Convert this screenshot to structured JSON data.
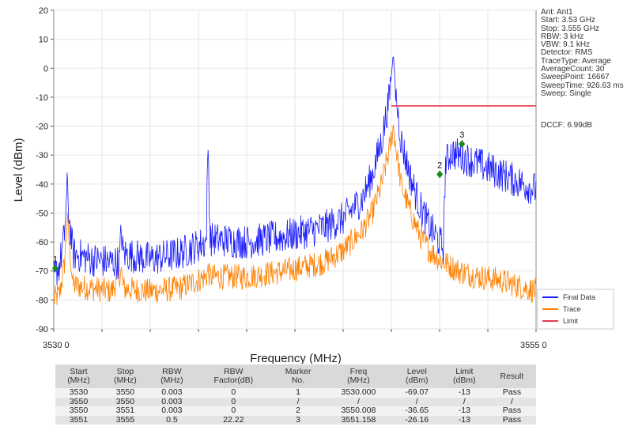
{
  "chart_data": {
    "type": "line",
    "xlabel": "Frequency (MHz)",
    "ylabel": "Level (dBm)",
    "xlim": [
      3530,
      3555
    ],
    "ylim": [
      -90,
      20
    ],
    "x_tick_labels": [
      "3530 0",
      "3555 0"
    ],
    "y_ticks": [
      20,
      10,
      0,
      -10,
      -20,
      -30,
      -40,
      -50,
      -60,
      -70,
      -80,
      -90
    ],
    "grid": true,
    "legend_position": "bottom-right",
    "series": [
      {
        "name": "Final Data",
        "color": "#1a1aff",
        "points": [
          [
            3530,
            -72
          ],
          [
            3530.3,
            -68
          ],
          [
            3530.55,
            -58
          ],
          [
            3530.7,
            -41
          ],
          [
            3530.8,
            -52
          ],
          [
            3531,
            -64
          ],
          [
            3532,
            -66
          ],
          [
            3533,
            -67
          ],
          [
            3533.4,
            -67
          ],
          [
            3533.5,
            -56
          ],
          [
            3533.6,
            -64
          ],
          [
            3535,
            -66
          ],
          [
            3536.5,
            -64
          ],
          [
            3537.9,
            -60
          ],
          [
            3538,
            -26
          ],
          [
            3538.1,
            -59
          ],
          [
            3540,
            -60
          ],
          [
            3542,
            -58
          ],
          [
            3544,
            -55
          ],
          [
            3545,
            -52
          ],
          [
            3546,
            -45
          ],
          [
            3546.5,
            -37
          ],
          [
            3547,
            -25
          ],
          [
            3547.4,
            -10
          ],
          [
            3547.6,
            5
          ],
          [
            3547.75,
            -10
          ],
          [
            3548,
            -25
          ],
          [
            3548.5,
            -38
          ],
          [
            3549,
            -48
          ],
          [
            3549.5,
            -55
          ],
          [
            3550,
            -60
          ],
          [
            3550.2,
            -62
          ],
          [
            3550.3,
            -33
          ],
          [
            3550.6,
            -29
          ],
          [
            3551,
            -30
          ],
          [
            3552,
            -33
          ],
          [
            3553,
            -36
          ],
          [
            3554,
            -39
          ],
          [
            3555,
            -42
          ]
        ]
      },
      {
        "name": "Trace",
        "color": "#ff8000",
        "points": [
          [
            3530,
            -80
          ],
          [
            3530.3,
            -78
          ],
          [
            3530.55,
            -68
          ],
          [
            3530.7,
            -52
          ],
          [
            3530.85,
            -64
          ],
          [
            3531,
            -75
          ],
          [
            3532,
            -76
          ],
          [
            3533,
            -77
          ],
          [
            3533.5,
            -70
          ],
          [
            3533.6,
            -76
          ],
          [
            3535,
            -77
          ],
          [
            3536.5,
            -76
          ],
          [
            3537.9,
            -72
          ],
          [
            3538,
            -70
          ],
          [
            3538.1,
            -72
          ],
          [
            3540,
            -72
          ],
          [
            3542,
            -70
          ],
          [
            3544,
            -67
          ],
          [
            3545,
            -63
          ],
          [
            3546,
            -56
          ],
          [
            3546.5,
            -50
          ],
          [
            3547,
            -40
          ],
          [
            3547.4,
            -28
          ],
          [
            3547.6,
            -20
          ],
          [
            3547.75,
            -28
          ],
          [
            3548,
            -40
          ],
          [
            3548.5,
            -50
          ],
          [
            3549,
            -58
          ],
          [
            3549.5,
            -63
          ],
          [
            3550,
            -66
          ],
          [
            3550.5,
            -68
          ],
          [
            3551,
            -70
          ],
          [
            3552,
            -72
          ],
          [
            3553,
            -73
          ],
          [
            3554,
            -75
          ],
          [
            3555,
            -77
          ]
        ]
      },
      {
        "name": "Limit",
        "color": "#e8384f",
        "points": [
          [
            3547.5,
            -13
          ],
          [
            3555,
            -13
          ]
        ]
      }
    ],
    "markers": [
      {
        "label": "1",
        "x": 3530.0,
        "y": -69.07
      },
      {
        "label": "2",
        "x": 3550.008,
        "y": -36.65
      },
      {
        "label": "3",
        "x": 3551.158,
        "y": -26.16
      }
    ]
  },
  "annotations": [
    "Ant: Ant1",
    "Start: 3.53 GHz",
    "Stop: 3.555 GHz",
    "RBW: 3 kHz",
    "VBW: 9.1 kHz",
    "Detector: RMS",
    "TraceType: Average",
    "AverageCount: 30",
    "SweepPoint: 16667",
    "SweepTime: 926.63 ms",
    "Sweep: Single"
  ],
  "dccf": "DCCF: 6.99dB",
  "table": {
    "headers": [
      [
        "Start",
        "(MHz)"
      ],
      [
        "Stop",
        "(MHz)"
      ],
      [
        "RBW",
        "(MHz)"
      ],
      [
        "RBW",
        "Factor(dB)"
      ],
      [
        "Marker",
        "No."
      ],
      [
        "Freq",
        "(MHz)"
      ],
      [
        "Level",
        "(dBm)"
      ],
      [
        "Limit",
        "(dBm)"
      ],
      [
        "Result",
        ""
      ]
    ],
    "rows": [
      [
        "3530",
        "3550",
        "0.003",
        "0",
        "1",
        "3530.000",
        "-69.07",
        "-13",
        "Pass"
      ],
      [
        "3550",
        "3550",
        "0.003",
        "0",
        "/",
        "/",
        "/",
        "/",
        "/"
      ],
      [
        "3550",
        "3551",
        "0.003",
        "0",
        "2",
        "3550.008",
        "-36.65",
        "-13",
        "Pass"
      ],
      [
        "3551",
        "3555",
        "0.5",
        "22.22",
        "3",
        "3551.158",
        "-26.16",
        "-13",
        "Pass"
      ]
    ]
  }
}
